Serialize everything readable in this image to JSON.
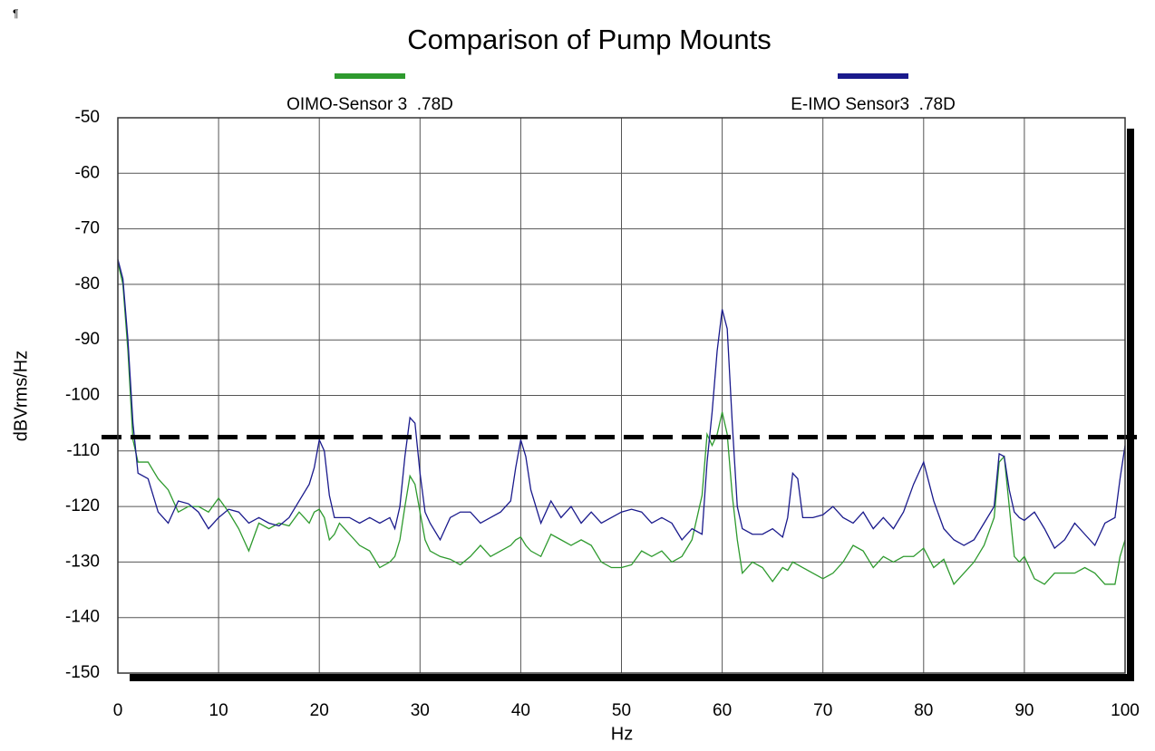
{
  "chart_data": {
    "type": "line",
    "corner_mark": "¶",
    "title": "Comparison of Pump Mounts",
    "x_label": "Hz",
    "y_label": "dBVrms/Hz",
    "x": [
      0,
      0.5,
      1,
      1.5,
      2,
      3,
      4,
      5,
      6,
      7,
      8,
      9,
      10,
      11,
      12,
      13,
      14,
      15,
      16,
      17,
      18,
      19,
      19.5,
      20,
      20.5,
      21,
      21.5,
      22,
      23,
      24,
      25,
      26,
      27,
      27.5,
      28,
      28.5,
      29,
      29.5,
      30,
      30.5,
      31,
      32,
      33,
      34,
      35,
      36,
      37,
      38,
      39,
      39.5,
      40,
      40.5,
      41,
      42,
      43,
      44,
      45,
      46,
      47,
      48,
      49,
      50,
      51,
      52,
      53,
      54,
      55,
      56,
      57,
      58,
      58.5,
      59,
      59.5,
      60,
      60.5,
      61,
      61.5,
      62,
      63,
      64,
      65,
      66,
      66.5,
      67,
      67.5,
      68,
      69,
      70,
      71,
      72,
      73,
      74,
      75,
      76,
      77,
      78,
      79,
      80,
      81,
      82,
      83,
      84,
      85,
      86,
      87,
      87.5,
      88,
      88.5,
      89,
      89.5,
      90,
      91,
      92,
      93,
      94,
      95,
      96,
      97,
      98,
      99,
      99.5,
      100
    ],
    "series": [
      {
        "name": "OIMO-Sensor 3  .78D",
        "color": "#2e9a2e",
        "values": [
          -76,
          -80,
          -92,
          -108,
          -112,
          -112,
          -115,
          -117,
          -121,
          -120,
          -120,
          -121,
          -118.5,
          -121,
          -124,
          -128,
          -123,
          -124,
          -123,
          -123.5,
          -121,
          -123,
          -121,
          -120.5,
          -122,
          -126,
          -125,
          -123,
          -125,
          -127,
          -128,
          -131,
          -130,
          -129,
          -126,
          -120,
          -114.5,
          -116,
          -121,
          -126,
          -128,
          -129,
          -129.5,
          -130.5,
          -129,
          -127,
          -129,
          -128,
          -127,
          -126,
          -125.5,
          -127,
          -128,
          -129,
          -125,
          -126,
          -127,
          -126,
          -127,
          -130,
          -131,
          -131,
          -130.5,
          -128,
          -129,
          -128,
          -130,
          -129,
          -126,
          -118,
          -107,
          -109,
          -107,
          -103,
          -107,
          -118,
          -126,
          -132,
          -130,
          -131,
          -133.5,
          -131,
          -131.5,
          -130,
          -130.5,
          -131,
          -132,
          -133,
          -132,
          -130,
          -127,
          -128,
          -131,
          -129,
          -130,
          -129,
          -129,
          -127.5,
          -131,
          -129.5,
          -134,
          -132,
          -130,
          -127,
          -122,
          -112,
          -111,
          -120,
          -129,
          -130,
          -129,
          -133,
          -134,
          -132,
          -132,
          -132,
          -131,
          -132,
          -134,
          -134,
          -129,
          -126
        ]
      },
      {
        "name": "E-IMO Sensor3  .78D",
        "color": "#1a1a8c",
        "values": [
          -75.5,
          -79,
          -90,
          -105,
          -114,
          -115,
          -121,
          -123,
          -119,
          -119.5,
          -121,
          -124,
          -122,
          -120.5,
          -121,
          -123,
          -122,
          -123,
          -123.5,
          -122,
          -119,
          -116,
          -113,
          -108,
          -110,
          -118,
          -122,
          -122,
          -122,
          -123,
          -122,
          -123,
          -122,
          -124,
          -120,
          -111,
          -104,
          -105,
          -114,
          -121,
          -123,
          -126,
          -122,
          -121,
          -121,
          -123,
          -122,
          -121,
          -119,
          -113,
          -108,
          -111,
          -117,
          -123,
          -119,
          -122,
          -120,
          -123,
          -121,
          -123,
          -122,
          -121,
          -120.5,
          -121,
          -123,
          -122,
          -123,
          -126,
          -124,
          -125,
          -112,
          -103,
          -92,
          -84.5,
          -88,
          -105,
          -120,
          -124,
          -125,
          -125,
          -124,
          -125.5,
          -122,
          -114,
          -115,
          -122,
          -122,
          -121.5,
          -120,
          -122,
          -123,
          -121,
          -124,
          -122,
          -124,
          -121,
          -116,
          -112,
          -119,
          -124,
          -126,
          -127,
          -126,
          -123,
          -120,
          -110.5,
          -111,
          -117,
          -121,
          -122,
          -122.5,
          -121,
          -124,
          -127.5,
          -126,
          -123,
          -125,
          -127,
          -123,
          -122,
          -115,
          -109
        ]
      }
    ],
    "reference_line": -107.5,
    "xlim": [
      0,
      100
    ],
    "xticks": [
      0,
      10,
      20,
      30,
      40,
      50,
      60,
      70,
      80,
      90,
      100
    ],
    "ylim": [
      -150,
      -50
    ],
    "yticks": [
      -150,
      -140,
      -130,
      -120,
      -110,
      -100,
      -90,
      -80,
      -70,
      -60,
      -50
    ],
    "grid": true
  }
}
